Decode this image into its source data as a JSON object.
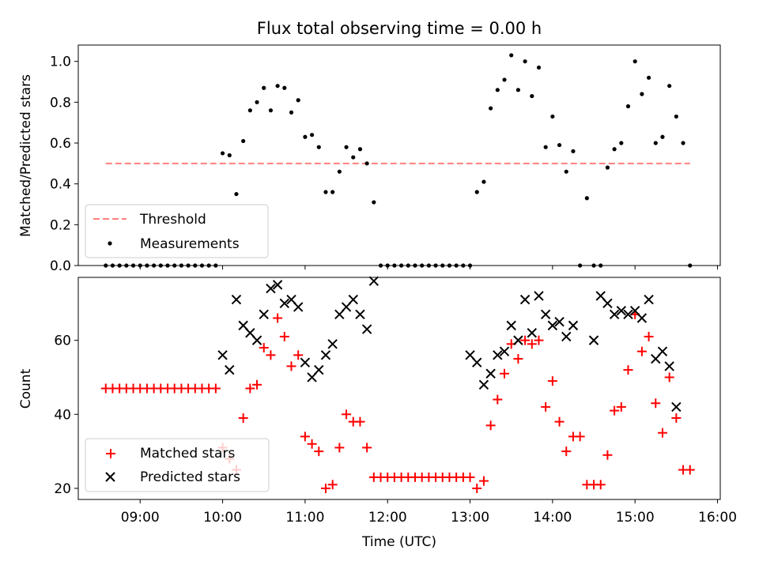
{
  "chart_data": [
    {
      "type": "scatter",
      "title": "Flux total observing time = 0.00 h",
      "xlabel": "",
      "ylabel": "Matched/Predicted stars",
      "ylim": [
        0,
        1.08
      ],
      "yticks": [
        0.0,
        0.2,
        0.4,
        0.6,
        0.8,
        1.0
      ],
      "ytick_labels": [
        "0.0",
        "0.2",
        "0.4",
        "0.6",
        "0.8",
        "1.0"
      ],
      "legend_placement": "lower-left",
      "legend": {
        "threshold": "Threshold",
        "measurements": "Measurements"
      },
      "threshold": {
        "value": 0.5,
        "x_start": "08:35",
        "x_end": "15:40",
        "color": "#ff7f7f"
      },
      "measurements": {
        "color": "#000000",
        "points": [
          [
            "08:35",
            0
          ],
          [
            "08:40",
            0
          ],
          [
            "08:45",
            0
          ],
          [
            "08:50",
            0
          ],
          [
            "08:55",
            0
          ],
          [
            "09:00",
            0
          ],
          [
            "09:05",
            0
          ],
          [
            "09:10",
            0
          ],
          [
            "09:15",
            0
          ],
          [
            "09:20",
            0
          ],
          [
            "09:25",
            0
          ],
          [
            "09:30",
            0
          ],
          [
            "09:35",
            0
          ],
          [
            "09:40",
            0
          ],
          [
            "09:45",
            0
          ],
          [
            "09:50",
            0
          ],
          [
            "09:55",
            0
          ],
          [
            "10:00",
            0.55
          ],
          [
            "10:05",
            0.54
          ],
          [
            "10:10",
            0.35
          ],
          [
            "10:15",
            0.61
          ],
          [
            "10:20",
            0.76
          ],
          [
            "10:25",
            0.8
          ],
          [
            "10:30",
            0.87
          ],
          [
            "10:35",
            0.76
          ],
          [
            "10:40",
            0.88
          ],
          [
            "10:45",
            0.87
          ],
          [
            "10:50",
            0.75
          ],
          [
            "10:55",
            0.81
          ],
          [
            "11:00",
            0.63
          ],
          [
            "11:05",
            0.64
          ],
          [
            "11:10",
            0.58
          ],
          [
            "11:15",
            0.36
          ],
          [
            "11:20",
            0.36
          ],
          [
            "11:25",
            0.46
          ],
          [
            "11:30",
            0.58
          ],
          [
            "11:35",
            0.53
          ],
          [
            "11:40",
            0.57
          ],
          [
            "11:45",
            0.5
          ],
          [
            "11:50",
            0.31
          ],
          [
            "11:55",
            0
          ],
          [
            "12:00",
            0
          ],
          [
            "12:05",
            0
          ],
          [
            "12:10",
            0
          ],
          [
            "12:15",
            0
          ],
          [
            "12:20",
            0
          ],
          [
            "12:25",
            0
          ],
          [
            "12:30",
            0
          ],
          [
            "12:35",
            0
          ],
          [
            "12:40",
            0
          ],
          [
            "12:45",
            0
          ],
          [
            "12:50",
            0
          ],
          [
            "12:55",
            0
          ],
          [
            "13:00",
            0
          ],
          [
            "13:05",
            0.36
          ],
          [
            "13:10",
            0.41
          ],
          [
            "13:15",
            0.77
          ],
          [
            "13:20",
            0.86
          ],
          [
            "13:25",
            0.91
          ],
          [
            "13:30",
            1.03
          ],
          [
            "13:35",
            0.86
          ],
          [
            "13:40",
            1.0
          ],
          [
            "13:45",
            0.83
          ],
          [
            "13:50",
            0.97
          ],
          [
            "13:55",
            0.58
          ],
          [
            "14:00",
            0.73
          ],
          [
            "14:05",
            0.59
          ],
          [
            "14:10",
            0.46
          ],
          [
            "14:15",
            0.56
          ],
          [
            "14:20",
            0
          ],
          [
            "14:25",
            0.33
          ],
          [
            "14:30",
            0
          ],
          [
            "14:35",
            0
          ],
          [
            "14:40",
            0.48
          ],
          [
            "14:45",
            0.57
          ],
          [
            "14:50",
            0.6
          ],
          [
            "14:55",
            0.78
          ],
          [
            "15:00",
            1.0
          ],
          [
            "15:05",
            0.84
          ],
          [
            "15:10",
            0.92
          ],
          [
            "15:15",
            0.6
          ],
          [
            "15:20",
            0.63
          ],
          [
            "15:25",
            0.88
          ],
          [
            "15:30",
            0.73
          ],
          [
            "15:35",
            0.6
          ],
          [
            "15:40",
            0
          ]
        ]
      }
    },
    {
      "type": "scatter",
      "title": "",
      "xlabel": "Time (UTC)",
      "ylabel": "Count",
      "xlim": [
        "08:15",
        "16:02"
      ],
      "ylim": [
        17,
        77
      ],
      "yticks": [
        20,
        40,
        60
      ],
      "ytick_labels": [
        "20",
        "40",
        "60"
      ],
      "xticks": [
        "09:00",
        "10:00",
        "11:00",
        "12:00",
        "13:00",
        "14:00",
        "15:00",
        "16:00"
      ],
      "xtick_labels": [
        "09:00",
        "10:00",
        "11:00",
        "12:00",
        "13:00",
        "14:00",
        "15:00",
        "16:00"
      ],
      "legend_placement": "lower-left",
      "series": [
        {
          "name": "Matched stars",
          "marker": "plus",
          "color": "#ff0000",
          "points": [
            [
              "08:35",
              47
            ],
            [
              "08:40",
              47
            ],
            [
              "08:45",
              47
            ],
            [
              "08:50",
              47
            ],
            [
              "08:55",
              47
            ],
            [
              "09:00",
              47
            ],
            [
              "09:05",
              47
            ],
            [
              "09:10",
              47
            ],
            [
              "09:15",
              47
            ],
            [
              "09:20",
              47
            ],
            [
              "09:25",
              47
            ],
            [
              "09:30",
              47
            ],
            [
              "09:35",
              47
            ],
            [
              "09:40",
              47
            ],
            [
              "09:45",
              47
            ],
            [
              "09:50",
              47
            ],
            [
              "09:55",
              47
            ],
            [
              "10:00",
              31
            ],
            [
              "10:05",
              28
            ],
            [
              "10:10",
              25
            ],
            [
              "10:15",
              39
            ],
            [
              "10:20",
              47
            ],
            [
              "10:25",
              48
            ],
            [
              "10:30",
              58
            ],
            [
              "10:35",
              56
            ],
            [
              "10:40",
              66
            ],
            [
              "10:45",
              61
            ],
            [
              "10:50",
              53
            ],
            [
              "10:55",
              56
            ],
            [
              "11:00",
              34
            ],
            [
              "11:05",
              32
            ],
            [
              "11:10",
              30
            ],
            [
              "11:15",
              20
            ],
            [
              "11:20",
              21
            ],
            [
              "11:25",
              31
            ],
            [
              "11:30",
              40
            ],
            [
              "11:35",
              38
            ],
            [
              "11:40",
              38
            ],
            [
              "11:45",
              31
            ],
            [
              "11:50",
              23
            ],
            [
              "11:55",
              23
            ],
            [
              "12:00",
              23
            ],
            [
              "12:05",
              23
            ],
            [
              "12:10",
              23
            ],
            [
              "12:15",
              23
            ],
            [
              "12:20",
              23
            ],
            [
              "12:25",
              23
            ],
            [
              "12:30",
              23
            ],
            [
              "12:35",
              23
            ],
            [
              "12:40",
              23
            ],
            [
              "12:45",
              23
            ],
            [
              "12:50",
              23
            ],
            [
              "12:55",
              23
            ],
            [
              "13:00",
              23
            ],
            [
              "13:05",
              20
            ],
            [
              "13:10",
              22
            ],
            [
              "13:15",
              37
            ],
            [
              "13:20",
              44
            ],
            [
              "13:25",
              51
            ],
            [
              "13:30",
              59
            ],
            [
              "13:35",
              55
            ],
            [
              "13:40",
              60
            ],
            [
              "13:45",
              59
            ],
            [
              "13:50",
              60
            ],
            [
              "13:55",
              42
            ],
            [
              "14:00",
              49
            ],
            [
              "14:05",
              38
            ],
            [
              "14:10",
              30
            ],
            [
              "14:15",
              34
            ],
            [
              "14:20",
              34
            ],
            [
              "14:25",
              21
            ],
            [
              "14:30",
              21
            ],
            [
              "14:35",
              21
            ],
            [
              "14:40",
              29
            ],
            [
              "14:45",
              41
            ],
            [
              "14:50",
              42
            ],
            [
              "14:55",
              52
            ],
            [
              "15:00",
              67
            ],
            [
              "15:05",
              57
            ],
            [
              "15:10",
              61
            ],
            [
              "15:15",
              43
            ],
            [
              "15:20",
              35
            ],
            [
              "15:25",
              50
            ],
            [
              "15:30",
              39
            ],
            [
              "15:35",
              25
            ],
            [
              "15:40",
              25
            ]
          ]
        },
        {
          "name": "Predicted stars",
          "marker": "x",
          "color": "#000000",
          "points": [
            [
              "10:00",
              56
            ],
            [
              "10:05",
              52
            ],
            [
              "10:10",
              71
            ],
            [
              "10:15",
              64
            ],
            [
              "10:20",
              62
            ],
            [
              "10:25",
              60
            ],
            [
              "10:30",
              67
            ],
            [
              "10:35",
              74
            ],
            [
              "10:40",
              75
            ],
            [
              "10:45",
              70
            ],
            [
              "10:50",
              71
            ],
            [
              "10:55",
              69
            ],
            [
              "11:00",
              54
            ],
            [
              "11:05",
              50
            ],
            [
              "11:10",
              52
            ],
            [
              "11:15",
              56
            ],
            [
              "11:20",
              59
            ],
            [
              "11:25",
              67
            ],
            [
              "11:30",
              69
            ],
            [
              "11:35",
              71
            ],
            [
              "11:40",
              67
            ],
            [
              "11:45",
              63
            ],
            [
              "11:50",
              76
            ],
            [
              "13:00",
              56
            ],
            [
              "13:05",
              54
            ],
            [
              "13:10",
              48
            ],
            [
              "13:15",
              51
            ],
            [
              "13:20",
              56
            ],
            [
              "13:25",
              57
            ],
            [
              "13:30",
              64
            ],
            [
              "13:35",
              60
            ],
            [
              "13:40",
              71
            ],
            [
              "13:45",
              62
            ],
            [
              "13:50",
              72
            ],
            [
              "13:55",
              67
            ],
            [
              "14:00",
              64
            ],
            [
              "14:05",
              65
            ],
            [
              "14:10",
              61
            ],
            [
              "14:15",
              64
            ],
            [
              "14:30",
              60
            ],
            [
              "14:35",
              72
            ],
            [
              "14:40",
              70
            ],
            [
              "14:45",
              67
            ],
            [
              "14:50",
              68
            ],
            [
              "14:55",
              67
            ],
            [
              "15:00",
              68
            ],
            [
              "15:05",
              66
            ],
            [
              "15:10",
              71
            ],
            [
              "15:15",
              55
            ],
            [
              "15:20",
              57
            ],
            [
              "15:25",
              53
            ],
            [
              "15:30",
              42
            ]
          ]
        }
      ]
    }
  ]
}
